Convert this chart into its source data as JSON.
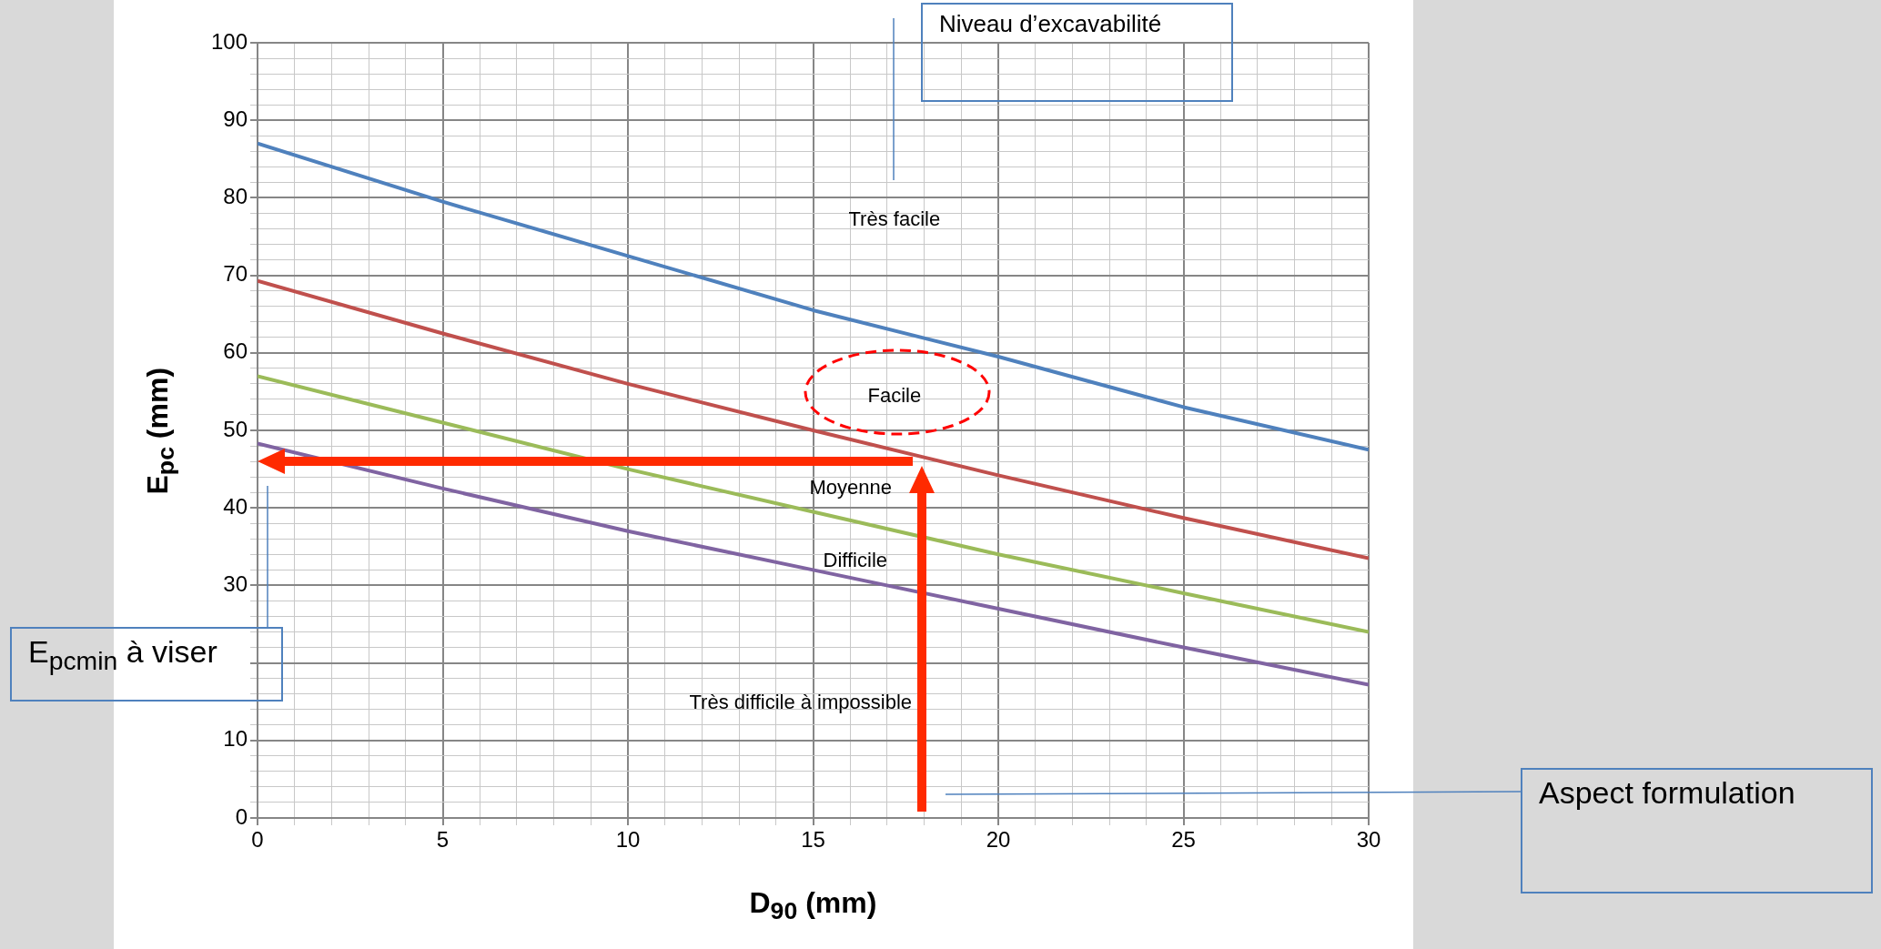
{
  "chart_data": {
    "type": "line",
    "xlabel": "D$_{90}$ (mm)",
    "ylabel": "E$_{pc}$ (mm)",
    "x": [
      0,
      5,
      10,
      15,
      20,
      25,
      30
    ],
    "series": [
      {
        "color": "#4f81bd",
        "values": [
          87,
          79.5,
          72.5,
          65.5,
          59.5,
          53,
          47.5
        ]
      },
      {
        "color": "#c0504d",
        "values": [
          69.3,
          62.5,
          56,
          50,
          44.2,
          38.7,
          33.5
        ]
      },
      {
        "color": "#9bbb59",
        "values": [
          57,
          51,
          45,
          39.5,
          34,
          29,
          24
        ]
      },
      {
        "color": "#8064a2",
        "values": [
          48.3,
          42.5,
          37,
          32,
          27,
          22,
          17.2
        ]
      }
    ],
    "xlim": [
      0,
      30
    ],
    "xticks": [
      0,
      {
        "value": 1,
        "label": null
      },
      {
        "value": 2,
        "label": null
      },
      {
        "value": 3,
        "label": null
      },
      {
        "value": 4,
        "label": null
      },
      5,
      {
        "value": 6,
        "label": null
      },
      {
        "value": 7,
        "label": null
      },
      {
        "value": 8,
        "label": null
      },
      {
        "value": 9,
        "label": null
      },
      10,
      {
        "value": 11,
        "label": null
      },
      {
        "value": 12,
        "label": null
      },
      {
        "value": 13,
        "label": null
      },
      {
        "value": 14,
        "label": null
      },
      15,
      {
        "value": 16,
        "label": null
      },
      {
        "value": 17,
        "label": null
      },
      {
        "value": 18,
        "label": null
      },
      {
        "value": 19,
        "label": null
      },
      20,
      {
        "value": 21,
        "label": null
      },
      {
        "value": 22,
        "label": null
      },
      {
        "value": 23,
        "label": null
      },
      {
        "value": 24,
        "label": null
      },
      25,
      {
        "value": 26,
        "label": null
      },
      {
        "value": 27,
        "label": null
      },
      {
        "value": 28,
        "label": null
      },
      {
        "value": 29,
        "label": null
      },
      30
    ],
    "ylim": [
      0,
      100
    ],
    "yticks": [
      0,
      {
        "value": 2,
        "label": null
      },
      {
        "value": 4,
        "label": null
      },
      {
        "value": 6,
        "label": null
      },
      {
        "value": 8,
        "label": null
      },
      10,
      {
        "value": 12,
        "label": null
      },
      {
        "value": 14,
        "label": null
      },
      {
        "value": 16,
        "label": null
      },
      {
        "value": 18,
        "label": null
      },
      {
        "value": 20,
        "label": null
      },
      {
        "value": 22,
        "label": null
      },
      {
        "value": 24,
        "label": null
      },
      {
        "value": 26,
        "label": null
      },
      {
        "value": 28,
        "label": null
      },
      30,
      {
        "value": 32,
        "label": null
      },
      {
        "value": 34,
        "label": null
      },
      {
        "value": 36,
        "label": null
      },
      {
        "value": 38,
        "label": null
      },
      40,
      {
        "value": 42,
        "label": null
      },
      {
        "value": 44,
        "label": null
      },
      {
        "value": 46,
        "label": null
      },
      {
        "value": 48,
        "label": null
      },
      50,
      {
        "value": 52,
        "label": null
      },
      {
        "value": 54,
        "label": null
      },
      {
        "value": 56,
        "label": null
      },
      {
        "value": 58,
        "label": null
      },
      60,
      {
        "value": 62,
        "label": null
      },
      {
        "value": 64,
        "label": null
      },
      {
        "value": 66,
        "label": null
      },
      {
        "value": 68,
        "label": null
      },
      70,
      {
        "value": 72,
        "label": null
      },
      {
        "value": 74,
        "label": null
      },
      {
        "value": 76,
        "label": null
      },
      {
        "value": 78,
        "label": null
      },
      80,
      {
        "value": 82,
        "label": null
      },
      {
        "value": 84,
        "label": null
      },
      {
        "value": 86,
        "label": null
      },
      {
        "value": 88,
        "label": null
      },
      90,
      {
        "value": 92,
        "label": null
      },
      {
        "value": 94,
        "label": null
      },
      {
        "value": 96,
        "label": null
      },
      {
        "value": 98,
        "label": null
      },
      100
    ],
    "grid": true,
    "marker": "none",
    "line_style": "solid",
    "annotations": [
      "Niveau d’excavabilité",
      "E$_{pcmin}$ à viser",
      "Aspect formulation",
      "Très facile",
      "Facile",
      "Moyenne",
      "Difficile",
      "Très difficile à impossible"
    ]
  }
}
